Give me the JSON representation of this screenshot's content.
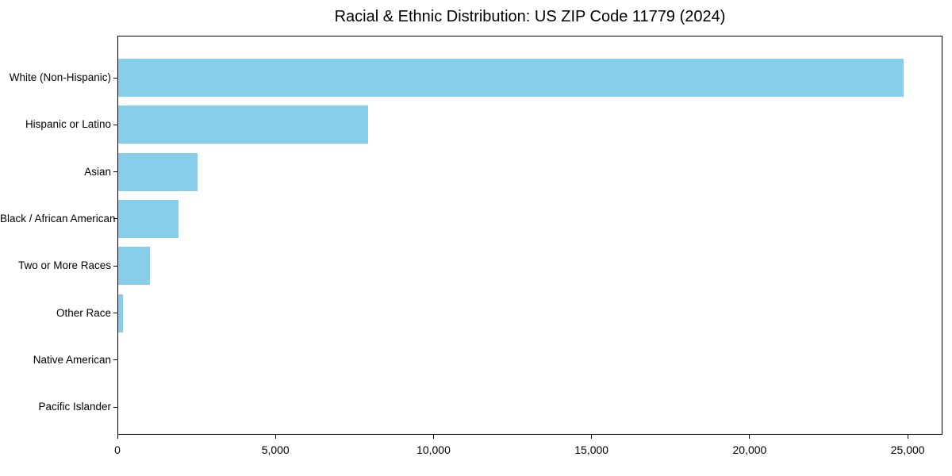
{
  "chart_data": {
    "type": "bar",
    "orientation": "horizontal",
    "title": "Racial & Ethnic Distribution: US ZIP Code 11779 (2024)",
    "categories": [
      "White (Non-Hispanic)",
      "Hispanic or Latino",
      "Asian",
      "Black / African American",
      "Two or More Races",
      "Other Race",
      "Native American",
      "Pacific Islander"
    ],
    "values": [
      24850,
      7900,
      2500,
      1900,
      1000,
      150,
      0,
      0
    ],
    "xlabel": "",
    "ylabel": "",
    "xlim": [
      0,
      26100
    ],
    "xticks": [
      0,
      5000,
      10000,
      15000,
      20000,
      25000
    ],
    "xtick_labels": [
      "0",
      "5,000",
      "10,000",
      "15,000",
      "20,000",
      "25,000"
    ],
    "bar_color": "#87ceeb",
    "text_color": "#000000",
    "background_color": "#ffffff",
    "grid": false,
    "legend": null
  }
}
